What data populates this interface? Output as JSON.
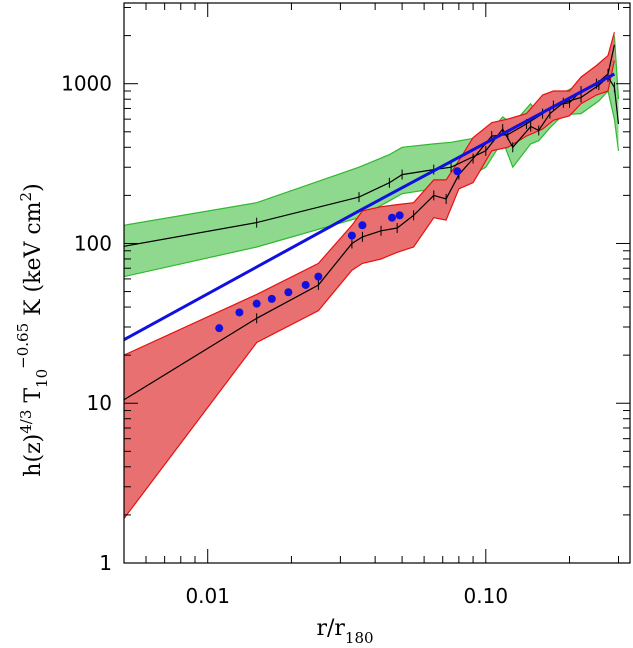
{
  "chart_data": {
    "type": "line",
    "xscale": "log",
    "yscale": "log",
    "xlim": [
      0.005,
      0.33
    ],
    "ylim": [
      1,
      3200
    ],
    "x_ticks": [
      {
        "value": 0.01,
        "label": "0.01"
      },
      {
        "value": 0.1,
        "label": "0.10"
      }
    ],
    "y_ticks": [
      {
        "value": 1,
        "label": "1"
      },
      {
        "value": 10,
        "label": "10"
      },
      {
        "value": 100,
        "label": "100"
      },
      {
        "value": 1000,
        "label": "1000"
      }
    ],
    "xlabel": {
      "main": "r/r",
      "sub": "180"
    },
    "ylabel": {
      "p1": "h(z)",
      "sup1": "4/3",
      "p2": " T",
      "sub2": "10",
      "sup2": "−0.65",
      "p3": " K  (keV cm",
      "sup3": "2",
      "p4": ")"
    },
    "grid": false,
    "colors": {
      "green_fill": "#8fd98f",
      "green_edge": "#2fb82f",
      "red_fill": "#e87070",
      "red_edge": "#e81010",
      "blue": "#1010e0",
      "black": "#000000"
    },
    "series": [
      {
        "kind": "band",
        "color": "green",
        "x": [
          0.005,
          0.015,
          0.035,
          0.045,
          0.05,
          0.065,
          0.075,
          0.1,
          0.115,
          0.125,
          0.145,
          0.155,
          0.17,
          0.19,
          0.22,
          0.255,
          0.275,
          0.29,
          0.3
        ],
        "upper": [
          130,
          180,
          300,
          360,
          400,
          420,
          430,
          470,
          620,
          560,
          750,
          630,
          800,
          880,
          1000,
          1250,
          1500,
          2000,
          800
        ],
        "lower": [
          62,
          95,
          145,
          185,
          205,
          220,
          225,
          300,
          440,
          300,
          420,
          440,
          530,
          640,
          650,
          780,
          900,
          600,
          380
        ],
        "median": [
          96,
          135,
          195,
          240,
          270,
          290,
          300,
          380,
          520,
          400,
          540,
          510,
          650,
          760,
          820,
          980,
          1100,
          950,
          560
        ]
      },
      {
        "kind": "band",
        "color": "red",
        "x": [
          0.005,
          0.015,
          0.025,
          0.033,
          0.036,
          0.042,
          0.048,
          0.055,
          0.065,
          0.072,
          0.08,
          0.09,
          0.105,
          0.12,
          0.14,
          0.16,
          0.175,
          0.2,
          0.22,
          0.25,
          0.275,
          0.29
        ],
        "upper": [
          20,
          48,
          75,
          130,
          160,
          170,
          175,
          180,
          250,
          250,
          330,
          460,
          570,
          600,
          650,
          850,
          900,
          900,
          1100,
          1300,
          1500,
          2100
        ],
        "lower": [
          1.9,
          24,
          38,
          68,
          75,
          80,
          88,
          95,
          145,
          140,
          220,
          240,
          380,
          400,
          470,
          520,
          590,
          630,
          750,
          850,
          900,
          1400
        ],
        "median": [
          10.5,
          34,
          55,
          100,
          110,
          120,
          125,
          150,
          200,
          190,
          270,
          340,
          470,
          480,
          560,
          650,
          730,
          760,
          900,
          1000,
          1150,
          1750
        ]
      },
      {
        "kind": "fit_line",
        "color": "blue",
        "x": [
          0.005,
          0.035,
          0.29
        ],
        "y": [
          25,
          160,
          1150
        ]
      },
      {
        "kind": "points",
        "color": "blue",
        "x": [
          0.011,
          0.013,
          0.015,
          0.017,
          0.0195,
          0.0225,
          0.025,
          0.033,
          0.036,
          0.046,
          0.049,
          0.079
        ],
        "y": [
          29.5,
          37,
          42,
          45,
          49.5,
          55,
          62,
          112,
          130,
          145,
          150,
          283
        ]
      }
    ]
  }
}
